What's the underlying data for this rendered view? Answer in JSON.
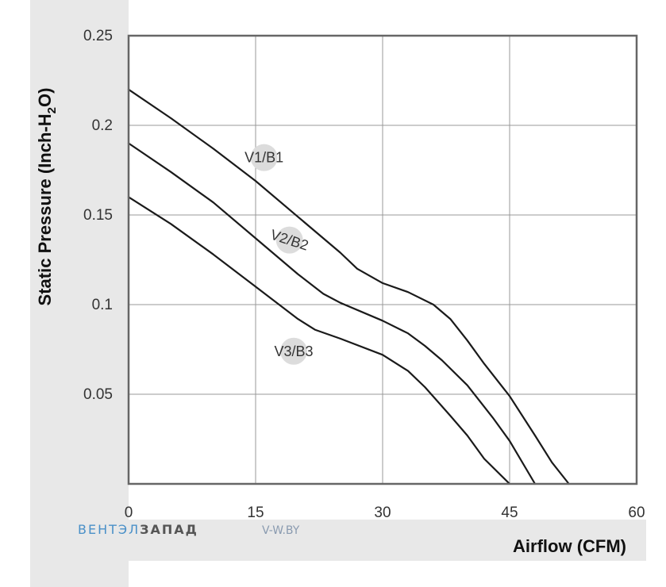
{
  "chart_data": {
    "type": "line",
    "xlabel": "Airflow (CFM)",
    "ylabel": {
      "main": "Static Pressure (Inch-H",
      "sub": "2",
      "tail": "O)"
    },
    "xlim": [
      0,
      60
    ],
    "ylim": [
      0,
      0.25
    ],
    "x_ticks": [
      "0",
      "15",
      "30",
      "45",
      "60"
    ],
    "y_ticks": [
      "0.25",
      "0.2",
      "0.15",
      "0.1",
      "0.05"
    ],
    "grid": true,
    "series": [
      {
        "name": "V1/B1",
        "color": "#1a1a1a",
        "x": [
          0,
          5,
          10,
          15,
          20,
          25,
          27,
          30,
          33,
          36,
          38,
          40,
          42,
          45,
          48,
          50,
          52
        ],
        "y": [
          0.22,
          0.204,
          0.187,
          0.169,
          0.149,
          0.129,
          0.12,
          0.112,
          0.107,
          0.1,
          0.092,
          0.08,
          0.067,
          0.049,
          0.027,
          0.012,
          0.0
        ]
      },
      {
        "name": "V2/B2",
        "color": "#1a1a1a",
        "x": [
          0,
          5,
          10,
          15,
          20,
          23,
          25,
          30,
          33,
          35,
          37,
          40,
          43,
          45,
          48
        ],
        "y": [
          0.19,
          0.174,
          0.157,
          0.137,
          0.117,
          0.106,
          0.101,
          0.091,
          0.084,
          0.077,
          0.069,
          0.055,
          0.037,
          0.024,
          0.0
        ]
      },
      {
        "name": "V3/B3",
        "color": "#1a1a1a",
        "x": [
          0,
          5,
          10,
          15,
          20,
          22,
          25,
          30,
          33,
          35,
          38,
          40,
          42,
          45
        ],
        "y": [
          0.16,
          0.145,
          0.128,
          0.11,
          0.092,
          0.086,
          0.081,
          0.072,
          0.063,
          0.054,
          0.038,
          0.027,
          0.014,
          0.0
        ]
      }
    ],
    "labels": [
      {
        "text": "V1/B1",
        "x": 16,
        "y": 0.182
      },
      {
        "text": "V2/B2",
        "x": 19,
        "y": 0.136
      },
      {
        "text": "V3/B3",
        "x": 19.5,
        "y": 0.074
      }
    ]
  },
  "watermark": {
    "part1": "ВЕНТЭЛ",
    "part2": "ЗАПАД",
    "site": "V-W.BY",
    "color1": "#4a90c8",
    "color2": "#555555",
    "site_color": "#8a9bb0"
  }
}
